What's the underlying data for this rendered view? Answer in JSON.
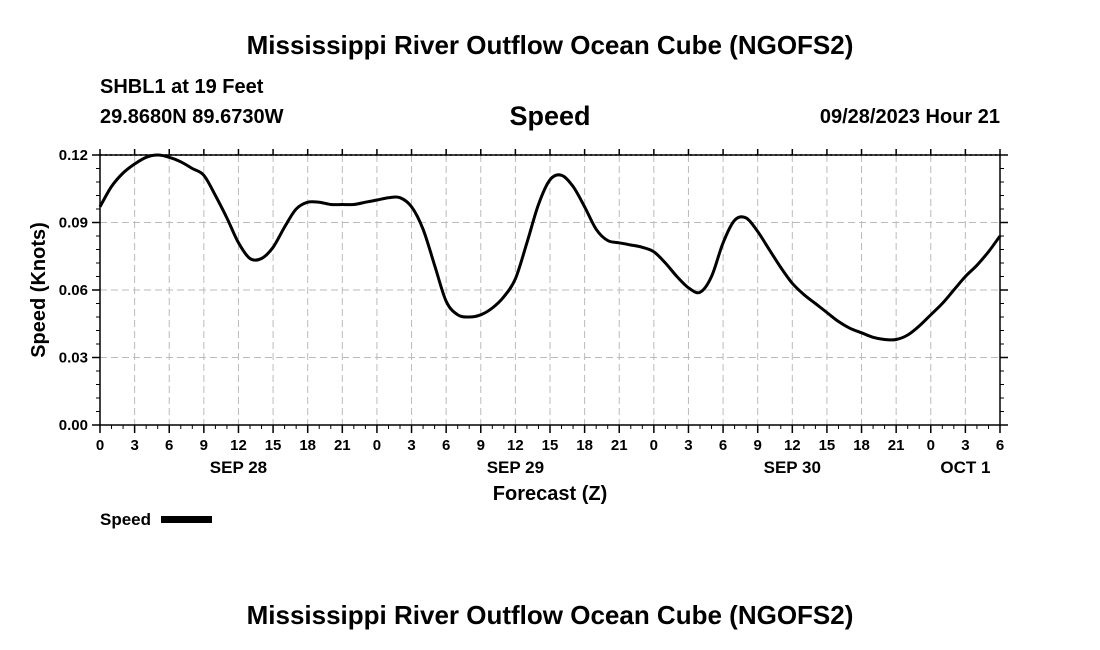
{
  "header": {
    "title": "Mississippi River Outflow Ocean Cube (NGOFS2)",
    "station": "SHBL1 at 19 Feet",
    "coords": "29.8680N  89.6730W",
    "variable": "Speed",
    "timestamp": "09/28/2023 Hour 21"
  },
  "footer": {
    "title": "Mississippi River Outflow Ocean Cube (NGOFS2)"
  },
  "legend": {
    "label": "Speed",
    "line_color": "#000000"
  },
  "chart_data": {
    "type": "line",
    "title": "Speed",
    "xlabel": "Forecast (Z)",
    "ylabel": "Speed (Knots)",
    "xlim": [
      0,
      78
    ],
    "ylim": [
      0,
      0.12
    ],
    "y_ticks": [
      "0.00",
      "0.03",
      "0.06",
      "0.09",
      "0.12"
    ],
    "x_tick_labels": [
      "0",
      "3",
      "6",
      "9",
      "12",
      "15",
      "18",
      "21",
      "0",
      "3",
      "6",
      "9",
      "12",
      "15",
      "18",
      "21",
      "0",
      "3",
      "6",
      "9",
      "12",
      "15",
      "18",
      "21",
      "0",
      "3",
      "6"
    ],
    "day_labels": [
      {
        "label": "SEP 28",
        "hour": 12
      },
      {
        "label": "SEP 29",
        "hour": 36
      },
      {
        "label": "SEP 30",
        "hour": 60
      },
      {
        "label": "OCT 1",
        "hour": 75
      }
    ],
    "grid": true,
    "series": [
      {
        "name": "Speed",
        "color": "#000000",
        "x": [
          0,
          1,
          2,
          3,
          4,
          5,
          6,
          7,
          8,
          9,
          10,
          11,
          12,
          13,
          14,
          15,
          16,
          17,
          18,
          19,
          20,
          21,
          22,
          23,
          24,
          25,
          26,
          27,
          28,
          29,
          30,
          31,
          32,
          33,
          34,
          35,
          36,
          37,
          38,
          39,
          40,
          41,
          42,
          43,
          44,
          45,
          46,
          47,
          48,
          49,
          50,
          51,
          52,
          53,
          54,
          55,
          56,
          57,
          58,
          59,
          60,
          61,
          62,
          63,
          64,
          65,
          66,
          67,
          68,
          69,
          70,
          71,
          72,
          73,
          74,
          75,
          76,
          77,
          78
        ],
        "y": [
          0.097,
          0.106,
          0.112,
          0.116,
          0.119,
          0.12,
          0.119,
          0.117,
          0.114,
          0.111,
          0.102,
          0.092,
          0.081,
          0.074,
          0.074,
          0.079,
          0.088,
          0.096,
          0.099,
          0.099,
          0.098,
          0.098,
          0.098,
          0.099,
          0.1,
          0.101,
          0.101,
          0.097,
          0.087,
          0.071,
          0.055,
          0.049,
          0.048,
          0.049,
          0.052,
          0.057,
          0.065,
          0.081,
          0.098,
          0.109,
          0.111,
          0.106,
          0.097,
          0.087,
          0.082,
          0.081,
          0.08,
          0.079,
          0.077,
          0.072,
          0.066,
          0.061,
          0.059,
          0.066,
          0.081,
          0.091,
          0.092,
          0.086,
          0.078,
          0.07,
          0.063,
          0.058,
          0.054,
          0.05,
          0.046,
          0.043,
          0.041,
          0.039,
          0.038,
          0.038,
          0.04,
          0.044,
          0.049,
          0.054,
          0.06,
          0.066,
          0.071,
          0.077,
          0.084
        ]
      }
    ]
  }
}
